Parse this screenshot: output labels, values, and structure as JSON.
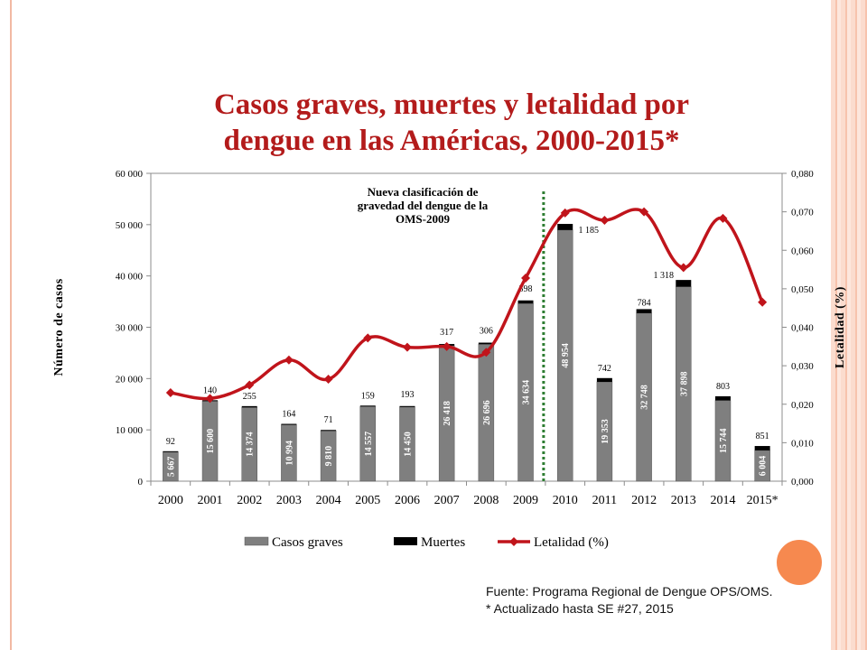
{
  "slide": {
    "title": "Casos graves, muertes y letalidad por\ndengue en las Américas, 2000-2015*",
    "source": "Fuente: Programa Regional de Dengue OPS/OMS.",
    "note": "* Actualizado hasta SE #27, 2015"
  },
  "chart_data": {
    "type": "bar",
    "categories": [
      "2000",
      "2001",
      "2002",
      "2003",
      "2004",
      "2005",
      "2006",
      "2007",
      "2008",
      "2009",
      "2010",
      "2011",
      "2012",
      "2013",
      "2014",
      "2015*"
    ],
    "series": [
      {
        "name": "Casos graves",
        "type": "bar",
        "axis": "left",
        "values": [
          5667,
          15600,
          14374,
          10994,
          9810,
          14557,
          14450,
          26418,
          26696,
          34634,
          48954,
          19353,
          32748,
          37898,
          15744,
          6004
        ],
        "labels": [
          "5 667",
          "15 600",
          "14 374",
          "10 994",
          "9 810",
          "14 557",
          "14 450",
          "26 418",
          "26 696",
          "34 634",
          "48 954",
          "19 353",
          "32 748",
          "37 898",
          "15 744",
          "6 004"
        ],
        "color": "#7f7f7f"
      },
      {
        "name": "Muertes",
        "type": "bar",
        "axis": "left",
        "stacked": true,
        "values": [
          92,
          140,
          255,
          164,
          71,
          159,
          193,
          317,
          306,
          598,
          1185,
          742,
          784,
          1318,
          803,
          851
        ],
        "labels": [
          "92",
          "140",
          "255",
          "164",
          "71",
          "159",
          "193",
          "317",
          "306",
          "598",
          "1 185",
          "742",
          "784",
          "1 318",
          "803",
          "851"
        ],
        "color": "#000000"
      },
      {
        "name": "Letalidad (%)",
        "type": "line",
        "axis": "right",
        "values": [
          0.023,
          0.0215,
          0.025,
          0.0315,
          0.0265,
          0.0372,
          0.0348,
          0.035,
          0.0335,
          0.0528,
          0.0697,
          0.0678,
          0.07,
          0.0555,
          0.0683,
          0.0465
        ],
        "color": "#c0141b"
      }
    ],
    "y_left": {
      "label": "Número de casos",
      "min": 0,
      "max": 60000,
      "ticks": [
        0,
        10000,
        20000,
        30000,
        40000,
        50000,
        60000
      ],
      "tick_labels": [
        "0",
        "10 000",
        "20 000",
        "30 000",
        "40 000",
        "50 000",
        "60 000"
      ]
    },
    "y_right": {
      "label": "Letalidad (%)",
      "min": 0,
      "max": 0.08,
      "ticks": [
        0,
        0.01,
        0.02,
        0.03,
        0.04,
        0.05,
        0.06,
        0.07,
        0.08
      ],
      "tick_labels": [
        "0,000",
        "0,010",
        "0,020",
        "0,030",
        "0,040",
        "0,050",
        "0,060",
        "0,070",
        "0,080"
      ]
    },
    "annotation": {
      "text_lines": [
        "Nueva clasificación de",
        "gravedad del dengue de la",
        "OMS-2009"
      ],
      "between": [
        "2009",
        "2010"
      ],
      "line_color": "#2e7d32"
    },
    "grid": false,
    "legend": {
      "position": "bottom"
    }
  }
}
